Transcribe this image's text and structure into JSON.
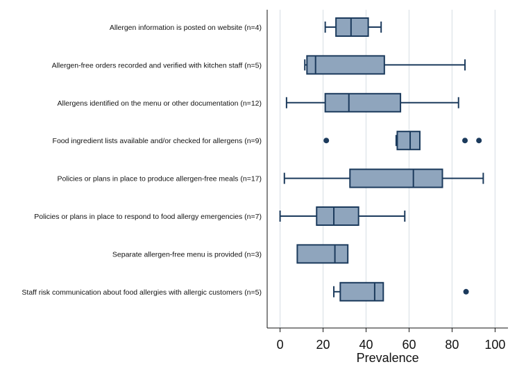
{
  "chart_data": {
    "type": "box",
    "orientation": "horizontal",
    "title": "",
    "xlabel": "Prevalence",
    "ylabel": "",
    "xlim": [
      -6,
      106
    ],
    "xticks": [
      0,
      20,
      40,
      60,
      80,
      100
    ],
    "grid": true,
    "colors": {
      "box_fill": "#8fa5bd",
      "stroke": "#1b3a5c",
      "grid": "#e3e8ec",
      "axis": "#111111"
    },
    "categories": [
      "Allergen information is posted on website (n=4)",
      "Allergen-free orders recorded and verified with kitchen staff (n=5)",
      "Allergens identified on the menu or other documentation (n=12)",
      "Food ingredient lists available and/or checked for allergens (n=9)",
      "Policies or plans in place to produce allergen-free meals (n=17)",
      "Policies or plans in place to respond to food allergy emergencies (n=7)",
      "Separate allergen-free menu is provided (n=3)",
      "Staff risk communication about food allergies with allergic customers (n=5)"
    ],
    "boxes": [
      {
        "whisker_low": 21,
        "q1": 26,
        "median": 33,
        "q3": 41,
        "whisker_high": 47,
        "outliers": []
      },
      {
        "whisker_low": 11.5,
        "q1": 12.5,
        "median": 16.5,
        "q3": 48.5,
        "whisker_high": 86,
        "outliers": []
      },
      {
        "whisker_low": 3,
        "q1": 21,
        "median": 32,
        "q3": 56,
        "whisker_high": 83,
        "outliers": []
      },
      {
        "whisker_low": 54,
        "q1": 54.5,
        "median": 60.5,
        "q3": 65,
        "whisker_high": 65,
        "outliers": [
          21.5,
          86,
          92.5
        ]
      },
      {
        "whisker_low": 2,
        "q1": 32.5,
        "median": 62,
        "q3": 75.5,
        "whisker_high": 94.5,
        "outliers": []
      },
      {
        "whisker_low": 0,
        "q1": 17,
        "median": 25,
        "q3": 36.5,
        "whisker_high": 58,
        "outliers": []
      },
      {
        "whisker_low": 8,
        "q1": 8,
        "median": 25.5,
        "q3": 31.5,
        "whisker_high": 31.5,
        "outliers": []
      },
      {
        "whisker_low": 25,
        "q1": 28,
        "median": 44,
        "q3": 48,
        "whisker_high": 48,
        "outliers": [
          86.5
        ]
      }
    ]
  }
}
